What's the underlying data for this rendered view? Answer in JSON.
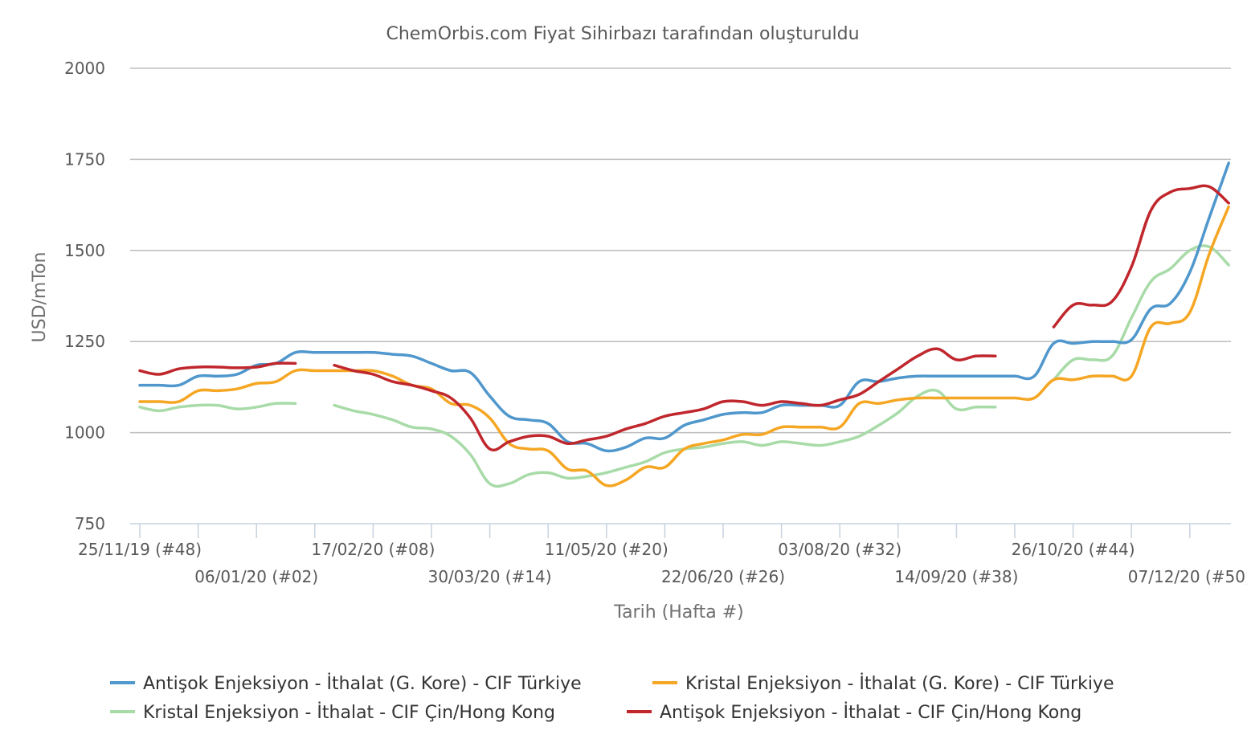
{
  "chart_data": {
    "type": "line",
    "title": "ChemOrbis.com Fiyat Sihirbazı tarafından oluşturuldu",
    "xlabel": "Tarih (Hafta #)",
    "ylabel": "USD/mTon",
    "ylim": [
      750,
      2000
    ],
    "yticks": [
      750,
      1000,
      1250,
      1500,
      1750,
      2000
    ],
    "x_tick_labels": [
      {
        "week": 0,
        "label": "25/11/19 (#48)"
      },
      {
        "week": 6,
        "label": "06/01/20 (#02)"
      },
      {
        "week": 12,
        "label": "17/02/20 (#08)"
      },
      {
        "week": 18,
        "label": "30/03/20 (#14)"
      },
      {
        "week": 24,
        "label": "11/05/20 (#20)"
      },
      {
        "week": 30,
        "label": "22/06/20 (#26)"
      },
      {
        "week": 36,
        "label": "03/08/20 (#32)"
      },
      {
        "week": 42,
        "label": "14/09/20 (#38)"
      },
      {
        "week": 48,
        "label": "26/10/20 (#44)"
      },
      {
        "week": 54,
        "label": "07/12/20 (#50)"
      }
    ],
    "x_minor_ticks": [
      3,
      9,
      15,
      21,
      27,
      33,
      39,
      45,
      51
    ],
    "x_range": [
      0,
      54
    ],
    "grid": true,
    "legend_position": "bottom",
    "series": [
      {
        "name": "Antişok Enjeksiyon - İthalat (G. Kore) - CIF Türkiye",
        "color": "#4f97cc",
        "points": [
          [
            0,
            1130
          ],
          [
            1,
            1130
          ],
          [
            2,
            1130
          ],
          [
            3,
            1155
          ],
          [
            4,
            1155
          ],
          [
            5,
            1160
          ],
          [
            6,
            1185
          ],
          [
            7,
            1190
          ],
          [
            8,
            1220
          ],
          [
            9,
            1220
          ],
          [
            10,
            1220
          ],
          [
            11,
            1220
          ],
          [
            12,
            1220
          ],
          [
            13,
            1215
          ],
          [
            14,
            1210
          ],
          [
            15,
            1190
          ],
          [
            16,
            1170
          ],
          [
            17,
            1165
          ],
          [
            18,
            1100
          ],
          [
            19,
            1045
          ],
          [
            20,
            1035
          ],
          [
            21,
            1025
          ],
          [
            22,
            975
          ],
          [
            23,
            970
          ],
          [
            24,
            950
          ],
          [
            25,
            960
          ],
          [
            26,
            985
          ],
          [
            27,
            985
          ],
          [
            28,
            1020
          ],
          [
            29,
            1035
          ],
          [
            30,
            1050
          ],
          [
            31,
            1055
          ],
          [
            32,
            1055
          ],
          [
            33,
            1075
          ],
          [
            34,
            1075
          ],
          [
            35,
            1075
          ],
          [
            36,
            1075
          ],
          [
            37,
            1140
          ],
          [
            38,
            1140
          ],
          [
            39,
            1150
          ],
          [
            40,
            1155
          ],
          [
            41,
            1155
          ],
          [
            42,
            1155
          ],
          [
            43,
            1155
          ],
          [
            44,
            1155
          ],
          [
            45,
            1155
          ],
          [
            46,
            1155
          ],
          [
            47,
            1245
          ],
          [
            48,
            1245
          ],
          [
            49,
            1250
          ],
          [
            50,
            1250
          ],
          [
            51,
            1255
          ],
          [
            52,
            1340
          ],
          [
            53,
            1355
          ],
          [
            54,
            1440
          ],
          [
            55,
            1590
          ],
          [
            56,
            1740
          ]
        ]
      },
      {
        "name": "Kristal Enjeksiyon - İthalat (G. Kore) - CIF Türkiye",
        "color": "#f5a623",
        "points": [
          [
            0,
            1085
          ],
          [
            1,
            1085
          ],
          [
            2,
            1085
          ],
          [
            3,
            1115
          ],
          [
            4,
            1115
          ],
          [
            5,
            1120
          ],
          [
            6,
            1135
          ],
          [
            7,
            1140
          ],
          [
            8,
            1170
          ],
          [
            9,
            1170
          ],
          [
            10,
            1170
          ],
          [
            11,
            1170
          ],
          [
            12,
            1170
          ],
          [
            13,
            1155
          ],
          [
            14,
            1130
          ],
          [
            15,
            1120
          ],
          [
            16,
            1080
          ],
          [
            17,
            1075
          ],
          [
            18,
            1040
          ],
          [
            19,
            970
          ],
          [
            20,
            955
          ],
          [
            21,
            950
          ],
          [
            22,
            900
          ],
          [
            23,
            895
          ],
          [
            24,
            855
          ],
          [
            25,
            870
          ],
          [
            26,
            905
          ],
          [
            27,
            905
          ],
          [
            28,
            955
          ],
          [
            29,
            970
          ],
          [
            30,
            980
          ],
          [
            31,
            995
          ],
          [
            32,
            995
          ],
          [
            33,
            1015
          ],
          [
            34,
            1015
          ],
          [
            35,
            1015
          ],
          [
            36,
            1015
          ],
          [
            37,
            1080
          ],
          [
            38,
            1080
          ],
          [
            39,
            1090
          ],
          [
            40,
            1095
          ],
          [
            41,
            1095
          ],
          [
            42,
            1095
          ],
          [
            43,
            1095
          ],
          [
            44,
            1095
          ],
          [
            45,
            1095
          ],
          [
            46,
            1095
          ],
          [
            47,
            1145
          ],
          [
            48,
            1145
          ],
          [
            49,
            1155
          ],
          [
            50,
            1155
          ],
          [
            51,
            1155
          ],
          [
            52,
            1290
          ],
          [
            53,
            1300
          ],
          [
            54,
            1330
          ],
          [
            55,
            1490
          ],
          [
            56,
            1620
          ]
        ]
      },
      {
        "name": "Kristal Enjeksiyon - İthalat - CIF Çin/Hong Kong",
        "color": "#a8dba8",
        "points": [
          [
            0,
            1070
          ],
          [
            1,
            1060
          ],
          [
            2,
            1070
          ],
          [
            3,
            1075
          ],
          [
            4,
            1075
          ],
          [
            5,
            1065
          ],
          [
            6,
            1070
          ],
          [
            7,
            1080
          ],
          [
            8,
            1080
          ],
          [
            9,
            null
          ],
          [
            10,
            1075
          ],
          [
            11,
            1060
          ],
          [
            12,
            1050
          ],
          [
            13,
            1035
          ],
          [
            14,
            1015
          ],
          [
            15,
            1010
          ],
          [
            16,
            990
          ],
          [
            17,
            940
          ],
          [
            18,
            860
          ],
          [
            19,
            860
          ],
          [
            20,
            885
          ],
          [
            21,
            890
          ],
          [
            22,
            875
          ],
          [
            23,
            880
          ],
          [
            24,
            890
          ],
          [
            25,
            905
          ],
          [
            26,
            920
          ],
          [
            27,
            945
          ],
          [
            28,
            955
          ],
          [
            29,
            960
          ],
          [
            30,
            970
          ],
          [
            31,
            975
          ],
          [
            32,
            965
          ],
          [
            33,
            975
          ],
          [
            34,
            970
          ],
          [
            35,
            965
          ],
          [
            36,
            975
          ],
          [
            37,
            990
          ],
          [
            38,
            1020
          ],
          [
            39,
            1055
          ],
          [
            40,
            1100
          ],
          [
            41,
            1115
          ],
          [
            42,
            1065
          ],
          [
            43,
            1070
          ],
          [
            44,
            1070
          ],
          [
            45,
            null
          ],
          [
            46,
            null
          ],
          [
            47,
            1145
          ],
          [
            48,
            1200
          ],
          [
            49,
            1200
          ],
          [
            50,
            1210
          ],
          [
            51,
            1315
          ],
          [
            52,
            1415
          ],
          [
            53,
            1450
          ],
          [
            54,
            1500
          ],
          [
            55,
            1510
          ],
          [
            56,
            1460
          ]
        ]
      },
      {
        "name": "Antişok Enjeksiyon - İthalat - CIF Çin/Hong Kong",
        "color": "#c0272d",
        "points": [
          [
            0,
            1170
          ],
          [
            1,
            1160
          ],
          [
            2,
            1175
          ],
          [
            3,
            1180
          ],
          [
            4,
            1180
          ],
          [
            5,
            1178
          ],
          [
            6,
            1180
          ],
          [
            7,
            1190
          ],
          [
            8,
            1190
          ],
          [
            9,
            null
          ],
          [
            10,
            1185
          ],
          [
            11,
            1170
          ],
          [
            12,
            1160
          ],
          [
            13,
            1140
          ],
          [
            14,
            1130
          ],
          [
            15,
            1115
          ],
          [
            16,
            1095
          ],
          [
            17,
            1040
          ],
          [
            18,
            955
          ],
          [
            19,
            975
          ],
          [
            20,
            990
          ],
          [
            21,
            990
          ],
          [
            22,
            970
          ],
          [
            23,
            980
          ],
          [
            24,
            990
          ],
          [
            25,
            1010
          ],
          [
            26,
            1025
          ],
          [
            27,
            1045
          ],
          [
            28,
            1055
          ],
          [
            29,
            1065
          ],
          [
            30,
            1085
          ],
          [
            31,
            1085
          ],
          [
            32,
            1075
          ],
          [
            33,
            1085
          ],
          [
            34,
            1080
          ],
          [
            35,
            1075
          ],
          [
            36,
            1090
          ],
          [
            37,
            1105
          ],
          [
            38,
            1140
          ],
          [
            39,
            1175
          ],
          [
            40,
            1210
          ],
          [
            41,
            1230
          ],
          [
            42,
            1200
          ],
          [
            43,
            1210
          ],
          [
            44,
            1210
          ],
          [
            45,
            null
          ],
          [
            46,
            null
          ],
          [
            47,
            1290
          ],
          [
            48,
            1350
          ],
          [
            49,
            1350
          ],
          [
            50,
            1360
          ],
          [
            51,
            1455
          ],
          [
            52,
            1610
          ],
          [
            53,
            1660
          ],
          [
            54,
            1670
          ],
          [
            55,
            1675
          ],
          [
            56,
            1630
          ]
        ]
      }
    ]
  }
}
